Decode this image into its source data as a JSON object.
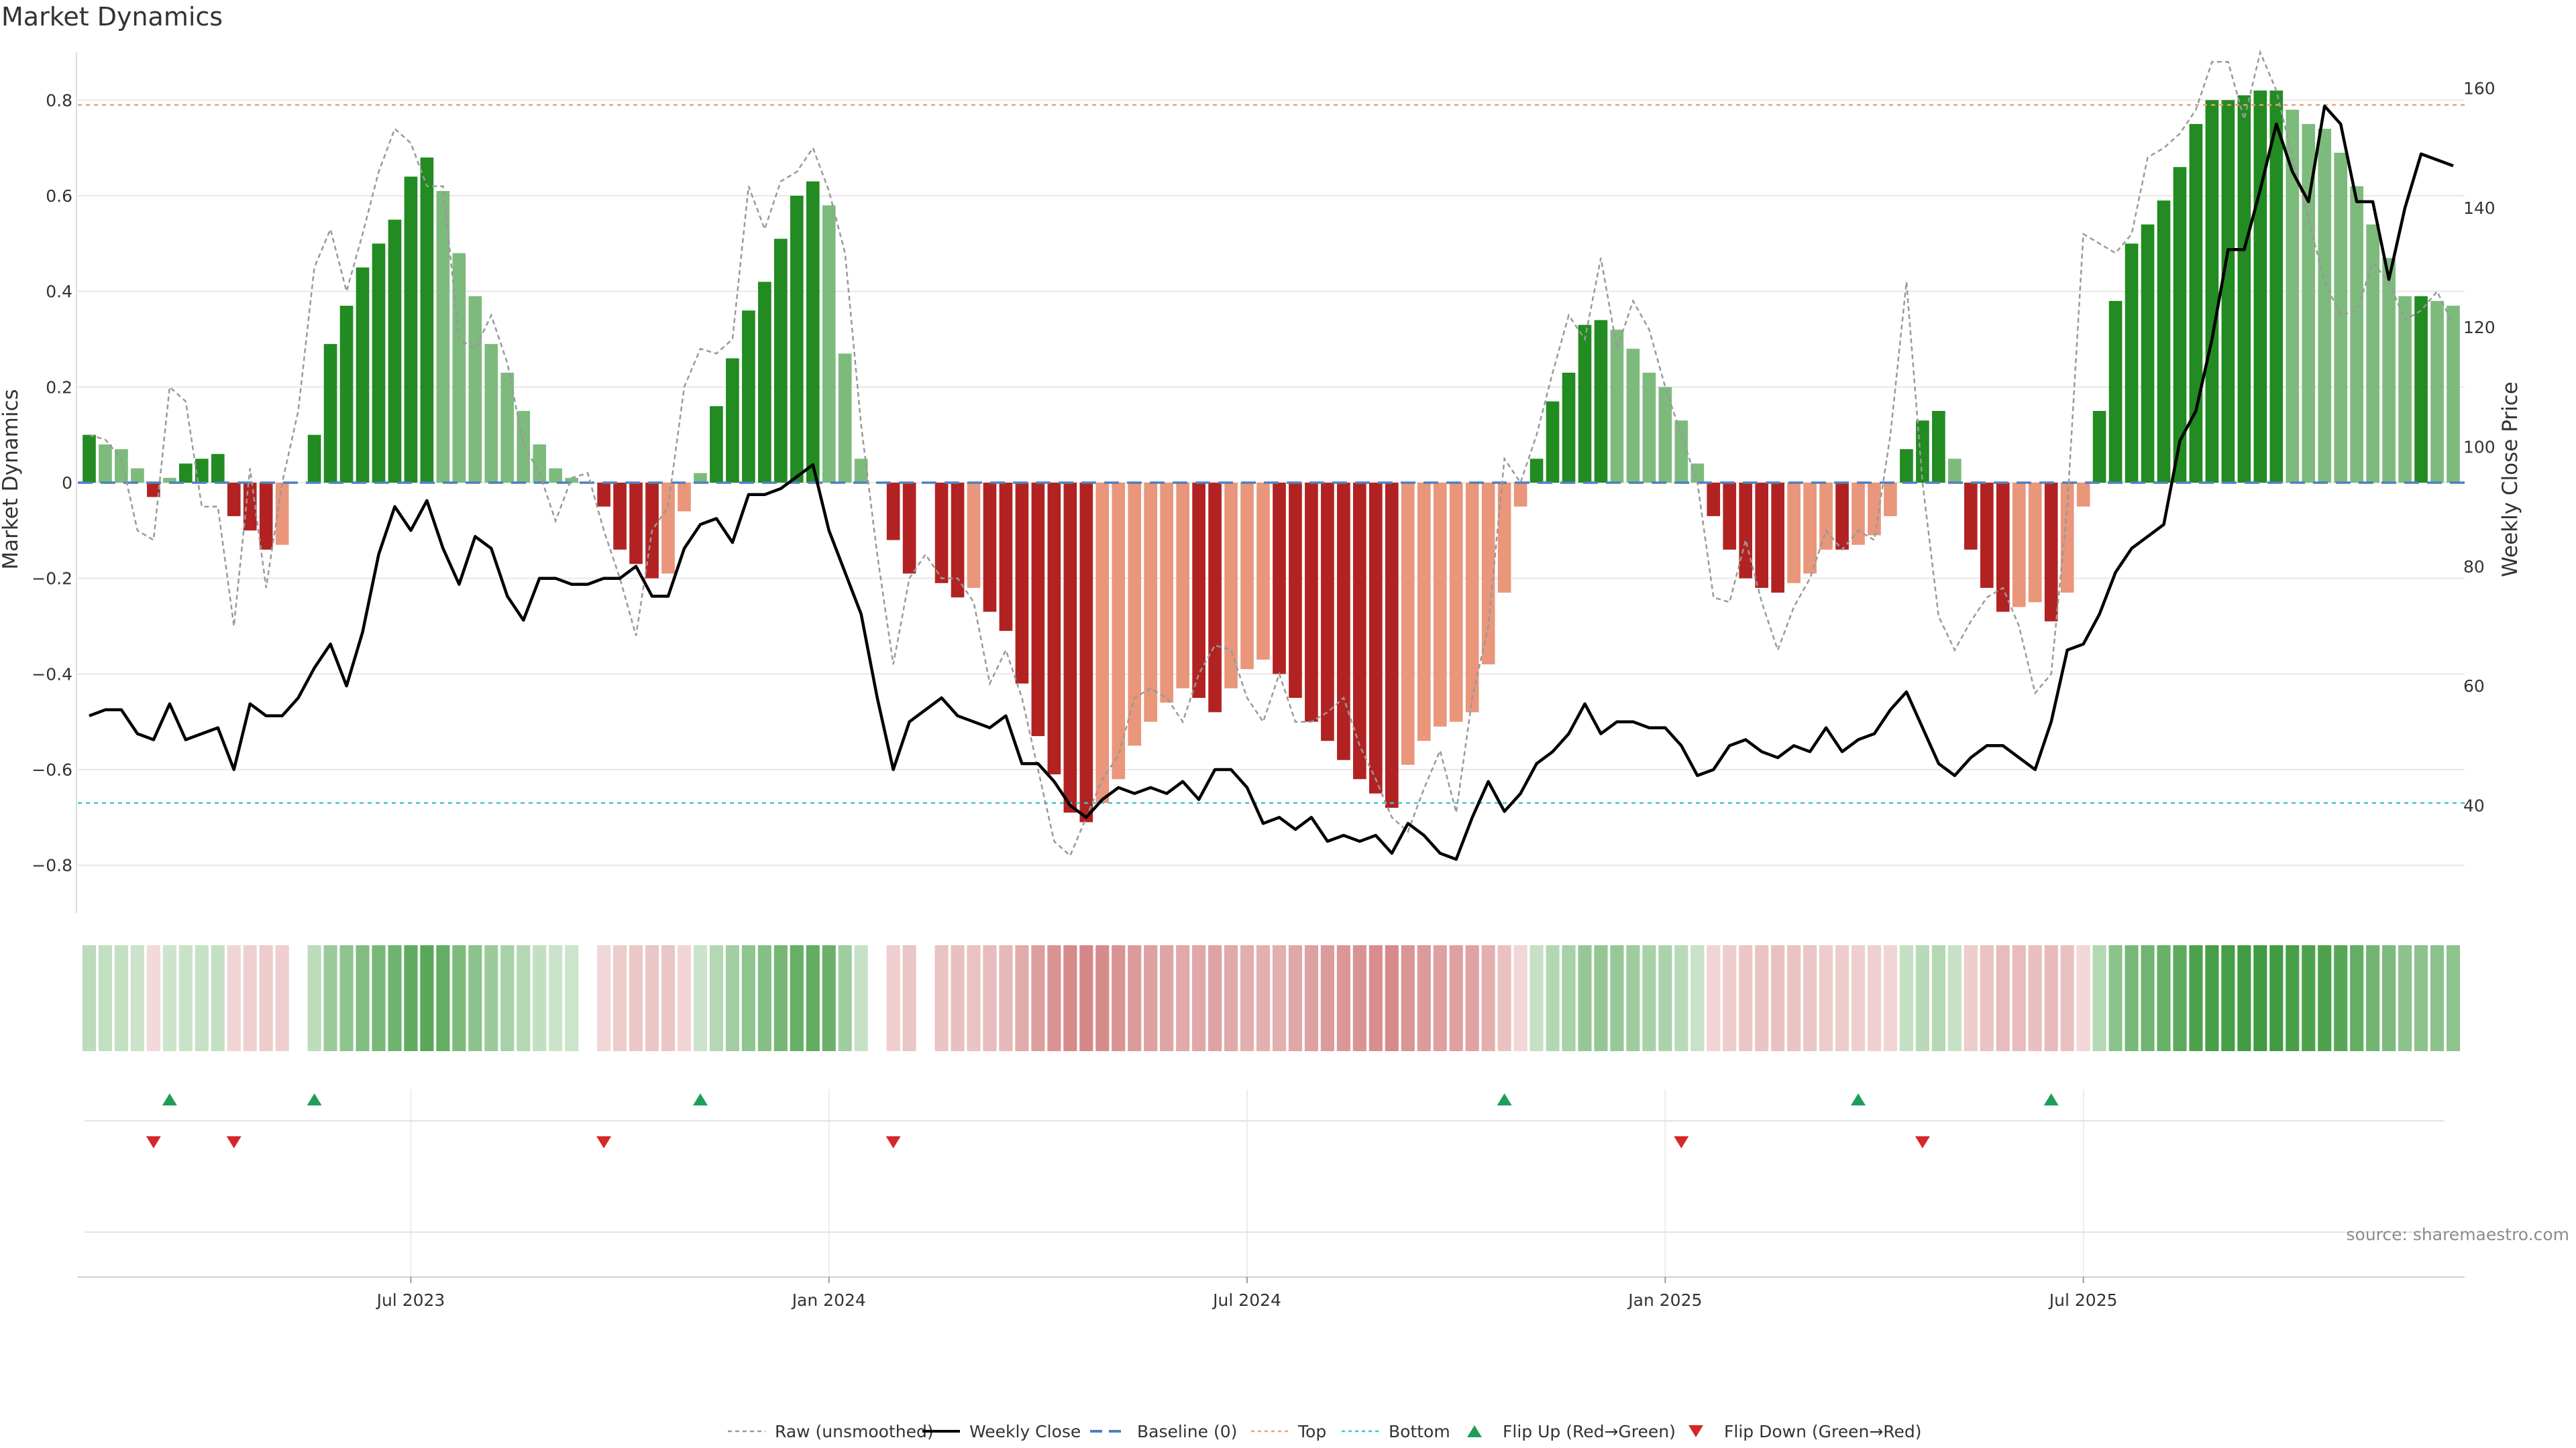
{
  "chart_data": {
    "type": "bar",
    "title": "Market Dynamics",
    "ylabel": "Market Dynamics",
    "y2label": "Weekly Close Price",
    "ylim": [
      -0.9,
      0.9
    ],
    "y2lim": [
      22,
      166
    ],
    "yticks": [
      -0.8,
      -0.6,
      -0.4,
      -0.2,
      0,
      0.2,
      0.4,
      0.6,
      0.8
    ],
    "ytick_labels": [
      "−0.8",
      "−0.6",
      "−0.4",
      "−0.2",
      "0",
      "0.2",
      "0.4",
      "0.6",
      "0.8"
    ],
    "y2ticks": [
      40,
      60,
      80,
      100,
      120,
      140,
      160
    ],
    "y2tick_labels": [
      "40",
      "60",
      "80",
      "100",
      "120",
      "140",
      "160"
    ],
    "top_line": 0.79,
    "bottom_line": -0.67,
    "x_ticks": [
      {
        "week": 20,
        "label": "Jul 2023"
      },
      {
        "week": 46,
        "label": "Jan 2024"
      },
      {
        "week": 72,
        "label": "Jul 2024"
      },
      {
        "week": 98,
        "label": "Jan 2025"
      },
      {
        "week": 124,
        "label": "Jul 2025"
      }
    ],
    "flip_up_weeks": [
      5,
      14,
      38,
      88,
      110,
      122
    ],
    "flip_down_weeks": [
      4,
      9,
      32,
      50,
      99,
      114
    ],
    "legend_position": "bottom-center",
    "momentum": [
      0.1,
      0.08,
      0.07,
      0.03,
      -0.03,
      0.01,
      0.04,
      0.05,
      0.06,
      -0.07,
      -0.1,
      -0.14,
      -0.13,
      0.0,
      0.1,
      0.29,
      0.37,
      0.45,
      0.5,
      0.55,
      0.64,
      0.68,
      0.61,
      0.48,
      0.39,
      0.29,
      0.23,
      0.15,
      0.08,
      0.03,
      0.01,
      0.0,
      -0.05,
      -0.14,
      -0.17,
      -0.2,
      -0.19,
      -0.06,
      0.02,
      0.16,
      0.26,
      0.36,
      0.42,
      0.51,
      0.6,
      0.63,
      0.58,
      0.27,
      0.05,
      0.0,
      -0.12,
      -0.19,
      0.0,
      -0.21,
      -0.24,
      -0.22,
      -0.27,
      -0.31,
      -0.42,
      -0.53,
      -0.61,
      -0.69,
      -0.71,
      -0.67,
      -0.62,
      -0.55,
      -0.5,
      -0.46,
      -0.43,
      -0.45,
      -0.48,
      -0.43,
      -0.39,
      -0.37,
      -0.4,
      -0.45,
      -0.5,
      -0.54,
      -0.58,
      -0.62,
      -0.65,
      -0.68,
      -0.59,
      -0.54,
      -0.51,
      -0.5,
      -0.48,
      -0.38,
      -0.23,
      -0.05,
      0.05,
      0.17,
      0.23,
      0.33,
      0.34,
      0.32,
      0.28,
      0.23,
      0.2,
      0.13,
      0.04,
      -0.07,
      -0.14,
      -0.2,
      -0.22,
      -0.23,
      -0.21,
      -0.19,
      -0.14,
      -0.14,
      -0.13,
      -0.11,
      -0.07,
      0.07,
      0.13,
      0.15,
      0.05,
      -0.14,
      -0.22,
      -0.27,
      -0.26,
      -0.25,
      -0.29,
      -0.23,
      -0.05,
      0.15,
      0.38,
      0.5,
      0.54,
      0.59,
      0.66,
      0.75,
      0.8,
      0.8,
      0.81,
      0.82,
      0.82,
      0.78,
      0.75,
      0.74,
      0.69,
      0.62,
      0.54,
      0.47,
      0.39,
      0.39,
      0.38,
      0.37
    ],
    "raw": [
      0.1,
      0.09,
      0.05,
      -0.1,
      -0.12,
      0.2,
      0.17,
      -0.05,
      -0.05,
      -0.3,
      0.03,
      -0.22,
      0.0,
      0.15,
      0.45,
      0.53,
      0.4,
      0.52,
      0.65,
      0.74,
      0.71,
      0.62,
      0.62,
      0.3,
      0.28,
      0.35,
      0.25,
      0.08,
      0.02,
      -0.08,
      0.01,
      0.02,
      -0.1,
      -0.2,
      -0.32,
      -0.1,
      -0.05,
      0.2,
      0.28,
      0.27,
      0.3,
      0.62,
      0.53,
      0.63,
      0.65,
      0.7,
      0.61,
      0.48,
      0.12,
      -0.15,
      -0.38,
      -0.2,
      -0.15,
      -0.2,
      -0.2,
      -0.25,
      -0.42,
      -0.35,
      -0.45,
      -0.6,
      -0.75,
      -0.78,
      -0.7,
      -0.62,
      -0.57,
      -0.45,
      -0.43,
      -0.45,
      -0.5,
      -0.4,
      -0.34,
      -0.35,
      -0.45,
      -0.5,
      -0.4,
      -0.5,
      -0.5,
      -0.48,
      -0.45,
      -0.55,
      -0.62,
      -0.7,
      -0.73,
      -0.64,
      -0.56,
      -0.69,
      -0.45,
      -0.3,
      0.05,
      0.0,
      0.1,
      0.23,
      0.35,
      0.3,
      0.47,
      0.28,
      0.38,
      0.32,
      0.2,
      0.1,
      0.0,
      -0.24,
      -0.25,
      -0.12,
      -0.25,
      -0.35,
      -0.26,
      -0.2,
      -0.1,
      -0.14,
      -0.1,
      -0.12,
      0.1,
      0.42,
      0.0,
      -0.28,
      -0.35,
      -0.29,
      -0.24,
      -0.22,
      -0.3,
      -0.44,
      -0.4,
      -0.05,
      0.52,
      0.5,
      0.48,
      0.52,
      0.68,
      0.7,
      0.73,
      0.78,
      0.88,
      0.88,
      0.76,
      0.9,
      0.82,
      0.68,
      0.55,
      0.42,
      0.35,
      0.36,
      0.46,
      0.42,
      0.34,
      0.36,
      0.4,
      0.33
    ],
    "weekly_close": [
      55,
      56,
      56,
      52,
      51,
      57,
      51,
      52,
      53,
      46,
      57,
      55,
      55,
      58,
      63,
      67,
      60,
      69,
      82,
      90,
      86,
      91,
      83,
      77,
      85,
      83,
      75,
      71,
      78,
      78,
      77,
      77,
      78,
      78,
      80,
      75,
      75,
      83,
      87,
      88,
      84,
      92,
      92,
      93,
      95,
      97,
      86,
      79,
      72,
      58,
      46,
      54,
      56,
      58,
      55,
      54,
      53,
      55,
      47,
      47,
      44,
      40,
      38,
      41,
      43,
      42,
      43,
      42,
      44,
      41,
      46,
      46,
      43,
      37,
      38,
      36,
      38,
      34,
      35,
      34,
      35,
      32,
      37,
      35,
      32,
      31,
      38,
      44,
      39,
      42,
      47,
      49,
      52,
      57,
      52,
      54,
      54,
      53,
      53,
      50,
      45,
      46,
      50,
      51,
      49,
      48,
      50,
      49,
      53,
      49,
      51,
      52,
      56,
      59,
      53,
      47,
      45,
      48,
      50,
      50,
      48,
      46,
      54,
      66,
      67,
      72,
      79,
      83,
      85,
      87,
      101,
      106,
      118,
      133,
      133,
      143,
      154,
      146,
      141,
      157,
      154,
      141,
      141,
      128,
      140,
      149,
      148,
      147
    ]
  },
  "legend": [
    {
      "key": "raw",
      "label": "Raw (unsmoothed)"
    },
    {
      "key": "weekly",
      "label": "Weekly Close"
    },
    {
      "key": "baseline",
      "label": "Baseline (0)"
    },
    {
      "key": "top",
      "label": "Top"
    },
    {
      "key": "bottom",
      "label": "Bottom"
    },
    {
      "key": "flip_up",
      "label": "Flip Up (Red→Green)"
    },
    {
      "key": "flip_down",
      "label": "Flip Down (Green→Red)"
    }
  ],
  "source": "source: sharemaestro.com",
  "colors": {
    "strong_green": "#228b22",
    "light_green": "#7dbb7d",
    "strong_red": "#b22222",
    "light_red": "#e9967a",
    "raw": "#999999",
    "weekly": "#000000",
    "baseline": "#4f7fbf",
    "top": "#f0a070",
    "bottom": "#40c4c4",
    "flip_up": "#1f9e5a",
    "flip_down": "#d62728"
  }
}
